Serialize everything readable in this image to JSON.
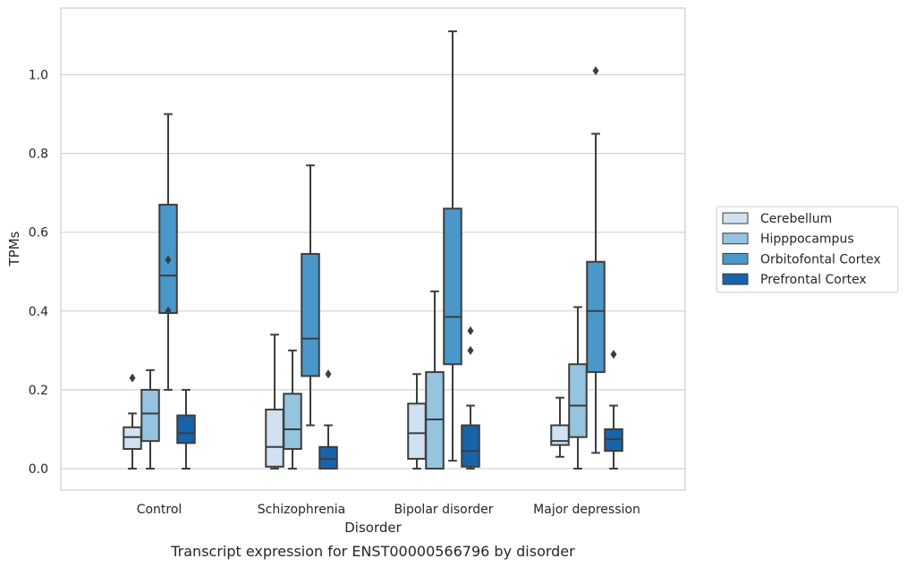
{
  "chart_data": {
    "type": "box",
    "caption": "Transcript expression for ENST00000566796 by disorder",
    "xlabel": "Disorder",
    "ylabel": "TPMs",
    "ylim": [
      -0.055,
      1.165
    ],
    "yticks": [
      "0.0",
      "0.2",
      "0.4",
      "0.6",
      "0.8",
      "1.0"
    ],
    "grid": "horizontal",
    "legend_position": "right",
    "categories": [
      "Control",
      "Schizophrenia",
      "Bipolar disorder",
      "Major depression"
    ],
    "series": [
      {
        "name": "Cerebellum",
        "color": "#d0e1f2",
        "boxes": [
          {
            "whisker_low": 0.0,
            "q1": 0.05,
            "median": 0.08,
            "q3": 0.105,
            "whisker_high": 0.14,
            "outliers": [
              0.23
            ]
          },
          {
            "whisker_low": 0.0,
            "q1": 0.005,
            "median": 0.055,
            "q3": 0.15,
            "whisker_high": 0.34,
            "outliers": []
          },
          {
            "whisker_low": 0.0,
            "q1": 0.025,
            "median": 0.09,
            "q3": 0.165,
            "whisker_high": 0.24,
            "outliers": []
          },
          {
            "whisker_low": 0.03,
            "q1": 0.06,
            "median": 0.07,
            "q3": 0.11,
            "whisker_high": 0.18,
            "outliers": []
          }
        ]
      },
      {
        "name": "Hipppocampus",
        "color": "#94c4df",
        "boxes": [
          {
            "whisker_low": 0.0,
            "q1": 0.07,
            "median": 0.14,
            "q3": 0.2,
            "whisker_high": 0.25,
            "outliers": []
          },
          {
            "whisker_low": 0.0,
            "q1": 0.05,
            "median": 0.1,
            "q3": 0.19,
            "whisker_high": 0.3,
            "outliers": []
          },
          {
            "whisker_low": 0.0,
            "q1": 0.0,
            "median": 0.125,
            "q3": 0.245,
            "whisker_high": 0.45,
            "outliers": []
          },
          {
            "whisker_low": 0.0,
            "q1": 0.08,
            "median": 0.16,
            "q3": 0.265,
            "whisker_high": 0.41,
            "outliers": []
          }
        ]
      },
      {
        "name": "Orbitofontal Cortex",
        "color": "#4a98c9",
        "boxes": [
          {
            "whisker_low": 0.2,
            "q1": 0.395,
            "median": 0.49,
            "q3": 0.67,
            "whisker_high": 0.9,
            "outliers": [
              0.53,
              0.4
            ]
          },
          {
            "whisker_low": 0.11,
            "q1": 0.235,
            "median": 0.33,
            "q3": 0.545,
            "whisker_high": 0.77,
            "outliers": []
          },
          {
            "whisker_low": 0.02,
            "q1": 0.265,
            "median": 0.385,
            "q3": 0.66,
            "whisker_high": 1.11,
            "outliers": []
          },
          {
            "whisker_low": 0.04,
            "q1": 0.245,
            "median": 0.4,
            "q3": 0.525,
            "whisker_high": 0.85,
            "outliers": [
              1.01
            ]
          }
        ]
      },
      {
        "name": "Prefrontal Cortex",
        "color": "#1764ab",
        "boxes": [
          {
            "whisker_low": 0.0,
            "q1": 0.065,
            "median": 0.09,
            "q3": 0.135,
            "whisker_high": 0.2,
            "outliers": []
          },
          {
            "whisker_low": 0.0,
            "q1": 0.0,
            "median": 0.025,
            "q3": 0.055,
            "whisker_high": 0.11,
            "outliers": [
              0.24
            ]
          },
          {
            "whisker_low": 0.0,
            "q1": 0.005,
            "median": 0.045,
            "q3": 0.11,
            "whisker_high": 0.16,
            "outliers": [
              0.35,
              0.3
            ]
          },
          {
            "whisker_low": 0.0,
            "q1": 0.045,
            "median": 0.075,
            "q3": 0.1,
            "whisker_high": 0.16,
            "outliers": [
              0.29
            ]
          }
        ]
      }
    ]
  }
}
